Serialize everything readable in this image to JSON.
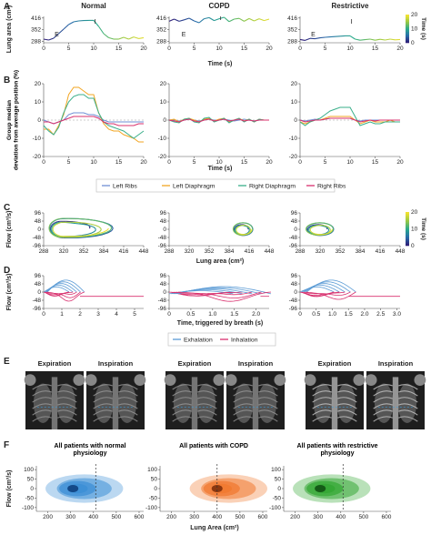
{
  "panel_letters": [
    "A",
    "B",
    "C",
    "D",
    "E",
    "F"
  ],
  "colors": {
    "left_ribs": "#6f8fd4",
    "left_diaphragm": "#f2a623",
    "right_diaphragm": "#3aaf8a",
    "right_ribs": "#d8306e",
    "exhalation": "#5b9bd5",
    "inhalation": "#d8306e",
    "normal_density": "#3d8fd6",
    "copd_density": "#f07a32",
    "restrictive_density": "#36a836",
    "time_colorbar_low": "#2d1e78",
    "time_colorbar_high": "#f0e030"
  },
  "column_titles": [
    "Normal",
    "COPD",
    "Restrictive"
  ],
  "chart_data": [
    {
      "id": "A",
      "type": "line",
      "colored_by": "time",
      "ylabel": "Lung area (cm²)",
      "xlabel": "Time (s)",
      "yticks": [
        288,
        352,
        416
      ],
      "xticks": [
        0,
        5,
        10,
        15,
        20
      ],
      "xlim": [
        0,
        20
      ],
      "colorbar": {
        "label": "Time (s)",
        "ticks": [
          0,
          10,
          20
        ]
      },
      "series": [
        {
          "panel": "Normal",
          "annotations": [
            "E",
            "I"
          ],
          "x": [
            0,
            1,
            2,
            3,
            4,
            5,
            6,
            7,
            8,
            9,
            10,
            11,
            12,
            13,
            14,
            15,
            16,
            17,
            18,
            19,
            20
          ],
          "y": [
            300,
            295,
            305,
            330,
            355,
            380,
            395,
            400,
            402,
            403,
            403,
            370,
            330,
            308,
            300,
            300,
            310,
            300,
            312,
            303,
            308
          ]
        },
        {
          "panel": "COPD",
          "annotations": [
            "E",
            "I"
          ],
          "x": [
            0,
            1,
            2,
            3,
            4,
            5,
            6,
            7,
            8,
            9,
            10,
            11,
            12,
            13,
            14,
            15,
            16,
            17,
            18,
            19,
            20
          ],
          "y": [
            398,
            410,
            398,
            406,
            415,
            400,
            390,
            412,
            418,
            402,
            412,
            420,
            396,
            410,
            414,
            398,
            413,
            400,
            412,
            402,
            410
          ]
        },
        {
          "panel": "Restrictive",
          "annotations": [
            "E",
            "I"
          ],
          "x": [
            0,
            1,
            2,
            3,
            4,
            5,
            6,
            7,
            8,
            9,
            10,
            11,
            12,
            13,
            14,
            15,
            16,
            17,
            18,
            19,
            20
          ],
          "y": [
            298,
            293,
            304,
            302,
            307,
            310,
            312,
            314,
            316,
            318,
            318,
            300,
            294,
            297,
            300,
            294,
            299,
            295,
            300,
            296,
            298
          ]
        }
      ]
    },
    {
      "id": "B",
      "type": "line",
      "ylabel": "Group median deviation from average position (%)",
      "xlabel": "Time (s)",
      "yticks": [
        -20,
        -10,
        0,
        10,
        20
      ],
      "xticks": [
        0,
        5,
        10,
        15,
        20
      ],
      "ylim": [
        -20,
        20
      ],
      "xlim": [
        0,
        20
      ],
      "legend": [
        "Left Ribs",
        "Left Diaphragm",
        "Right Diaphragm",
        "Right Ribs"
      ],
      "x": [
        0,
        1,
        2,
        3,
        4,
        5,
        6,
        7,
        8,
        9,
        10,
        11,
        12,
        13,
        14,
        15,
        16,
        17,
        18,
        19,
        20
      ],
      "panels": [
        {
          "panel": "Normal",
          "series": [
            {
              "name": "Left Ribs",
              "values": [
                0,
                -1,
                -2,
                -1,
                0,
                3,
                4,
                4,
                4,
                3,
                3,
                2,
                0,
                -1,
                -1,
                -1,
                -1,
                -1,
                -1,
                -1,
                -1
              ]
            },
            {
              "name": "Left Diaphragm",
              "values": [
                -5,
                -5,
                -8,
                -3,
                3,
                14,
                18,
                18,
                16,
                14,
                14,
                4,
                -2,
                -5,
                -6,
                -6,
                -8,
                -9,
                -10,
                -12,
                -12
              ]
            },
            {
              "name": "Right Diaphragm",
              "values": [
                -3,
                -6,
                -8,
                -4,
                4,
                10,
                13,
                14,
                14,
                12,
                12,
                4,
                -1,
                -3,
                -4,
                -5,
                -6,
                -8,
                -10,
                -8,
                -6
              ]
            },
            {
              "name": "Right Ribs",
              "values": [
                -1,
                -1,
                -2,
                -1,
                0,
                1,
                2,
                2,
                2,
                2,
                2,
                1,
                -1,
                -2,
                -2,
                -3,
                -3,
                -3,
                -3,
                -2,
                -2
              ]
            }
          ]
        },
        {
          "panel": "COPD",
          "series": [
            {
              "name": "Left Ribs",
              "values": [
                0,
                0,
                -0.5,
                0,
                0.5,
                0,
                -0.5,
                0,
                0.5,
                0,
                0,
                0.5,
                0,
                -0.5,
                0,
                0.5,
                0,
                -0.5,
                0,
                0,
                0
              ]
            },
            {
              "name": "Left Diaphragm",
              "values": [
                0,
                0.5,
                -1,
                0.5,
                1,
                0,
                -1,
                0.5,
                1,
                -0.5,
                0.5,
                1,
                -1,
                0,
                1,
                -0.5,
                0.5,
                -1,
                0.5,
                0,
                0
              ]
            },
            {
              "name": "Right Diaphragm",
              "values": [
                0,
                -1,
                -1.5,
                0.5,
                1,
                -1,
                -1.5,
                1,
                1.5,
                -1,
                0,
                1,
                -1.5,
                0,
                1,
                -1,
                0.5,
                -1,
                0.5,
                0,
                0
              ]
            },
            {
              "name": "Right Ribs",
              "values": [
                0,
                -0.5,
                -1,
                0,
                0.5,
                -0.5,
                -1,
                0,
                0.5,
                -0.5,
                0,
                0.5,
                -0.5,
                0,
                0.5,
                -0.5,
                0,
                -0.5,
                0,
                0,
                0
              ]
            }
          ]
        },
        {
          "panel": "Restrictive",
          "series": [
            {
              "name": "Left Ribs",
              "values": [
                0,
                -0.5,
                0,
                0.5,
                0,
                0.5,
                1,
                1,
                1,
                1,
                1,
                0,
                -0.5,
                0,
                0,
                0,
                0,
                0,
                0,
                0,
                0
              ]
            },
            {
              "name": "Left Diaphragm",
              "values": [
                -1,
                -2,
                -1,
                0,
                0,
                1,
                2,
                2,
                2,
                2,
                2,
                0,
                -2,
                -1,
                0,
                -1,
                -1,
                -1,
                0,
                -1,
                -1
              ]
            },
            {
              "name": "Right Diaphragm",
              "values": [
                -1,
                -3,
                -1,
                0,
                1,
                3,
                5,
                6,
                7,
                7,
                7,
                2,
                -3,
                -2,
                -1,
                -2,
                -2,
                -1,
                -1,
                -1,
                -1
              ]
            },
            {
              "name": "Right Ribs",
              "values": [
                0,
                -1,
                -0.5,
                0,
                0,
                0.5,
                1,
                1,
                1,
                1,
                1,
                0,
                -1,
                -0.5,
                0,
                -0.5,
                0,
                0,
                0,
                0,
                0
              ]
            }
          ]
        }
      ]
    },
    {
      "id": "C",
      "type": "line",
      "colored_by": "time",
      "ylabel": "Flow (cm³/s)",
      "xlabel": "Lung area (cm²)",
      "yticks": [
        -96,
        -48,
        0,
        48,
        96
      ],
      "xticks": [
        288,
        320,
        352,
        384,
        416,
        448
      ],
      "ylim": [
        -96,
        96
      ],
      "xlim": [
        288,
        448
      ],
      "colorbar": {
        "label": "Time (s)",
        "ticks": [
          0,
          10,
          20
        ]
      },
      "loops": [
        {
          "panel": "Normal",
          "center": [
            315,
            5
          ],
          "area_span": [
            298,
            400
          ],
          "flow_span": [
            -70,
            60
          ]
        },
        {
          "panel": "COPD",
          "center": [
            405,
            0
          ],
          "area_span": [
            388,
            420
          ],
          "flow_span": [
            -45,
            40
          ]
        },
        {
          "panel": "Restrictive",
          "center": [
            318,
            0
          ],
          "area_span": [
            300,
            345
          ],
          "flow_span": [
            -45,
            40
          ]
        }
      ]
    },
    {
      "id": "D",
      "type": "line",
      "ylabel": "Flow (cm³/s)",
      "xlabel": "Time, triggered by breath (s)",
      "yticks": [
        -96,
        -48,
        0,
        48,
        96
      ],
      "ylim": [
        -96,
        96
      ],
      "legend": [
        "Exhalation",
        "Inhalation"
      ],
      "panels": [
        {
          "panel": "Normal",
          "xticks": [
            0,
            1,
            2,
            3,
            4,
            5
          ],
          "xlim": [
            0,
            5.5
          ]
        },
        {
          "panel": "COPD",
          "xticks": [
            0,
            0.5,
            1.0,
            1.5,
            2.0
          ],
          "xlim": [
            0,
            2.3
          ]
        },
        {
          "panel": "Restrictive",
          "xticks": [
            0,
            0.5,
            1.0,
            1.5,
            2.0,
            2.5,
            3.0
          ],
          "xlim": [
            0,
            3.1
          ]
        }
      ]
    },
    {
      "id": "F",
      "type": "heatmap",
      "ylabel": "Flow (cm³/s)",
      "xlabel": "Lung Area (cm²)",
      "xticks": [
        200,
        300,
        400,
        500,
        600
      ],
      "yticks": [
        -100,
        -50,
        0,
        50,
        100
      ],
      "xlim": [
        150,
        620
      ],
      "ylim": [
        -120,
        120
      ],
      "panels": [
        {
          "title": "All patients with normal physiology",
          "peak": [
            310,
            0
          ],
          "marker_x": 410
        },
        {
          "title": "All patients with COPD",
          "peak": [
            400,
            0
          ],
          "marker_x": 400
        },
        {
          "title": "All patients with restrictive physiology",
          "peak": [
            310,
            0
          ],
          "marker_x": 410
        }
      ]
    }
  ],
  "panel_e": {
    "labels": [
      "Expiration",
      "Inspiration",
      "Expiration",
      "Inspiration",
      "Expiration",
      "Inspiration"
    ]
  }
}
